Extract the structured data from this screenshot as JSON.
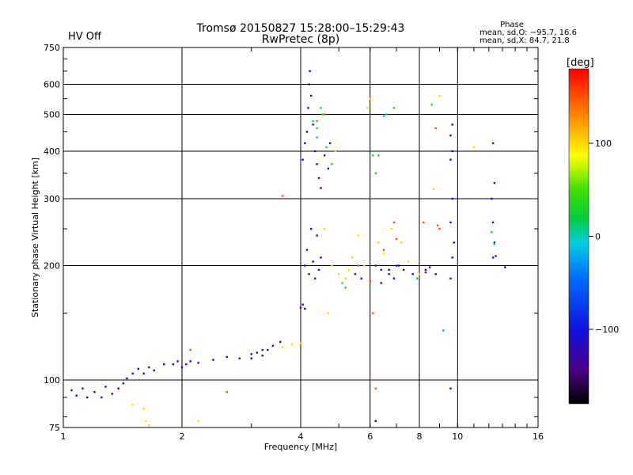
{
  "header": {
    "title_line1": "Tromsø 20150827 15:28:00–15:29:43",
    "title_line2": "RwPretec (8p)",
    "status": "HV Off",
    "status_color": "#d00000"
  },
  "phase_info": {
    "heading": "Phase",
    "line_o": "mean, sd,O: −95.7, 16.6",
    "line_x": "mean, sd,X:  84.7, 21.8"
  },
  "colorbar": {
    "label": "[deg]",
    "ticks": [
      {
        "value": 100,
        "label": "100"
      },
      {
        "value": 0,
        "label": "0"
      },
      {
        "value": -100,
        "label": "−100"
      }
    ],
    "range": [
      -180,
      180
    ]
  },
  "chart_data": {
    "type": "scatter",
    "xlabel": "Frequency [MHz]",
    "ylabel": "Stationary phase Virtual Height [km]",
    "x_scale": "log",
    "y_scale": "log",
    "xlim": [
      1,
      16
    ],
    "ylim": [
      75,
      750
    ],
    "xticks": [
      1,
      2,
      4,
      6,
      8,
      10,
      16
    ],
    "xtick_labels": [
      "1",
      "2",
      "4",
      "6",
      "8",
      "10",
      "16"
    ],
    "yticks": [
      75,
      100,
      200,
      300,
      400,
      500,
      600,
      750
    ],
    "ytick_labels": [
      "75",
      "100",
      "200",
      "300",
      "400",
      "500",
      "600",
      "750"
    ],
    "grid": true,
    "series": [
      {
        "points": [
          [
            1.05,
            94
          ],
          [
            1.08,
            91
          ],
          [
            1.12,
            95
          ],
          [
            1.15,
            90
          ],
          [
            1.2,
            93
          ],
          [
            1.25,
            90
          ],
          [
            1.28,
            96
          ],
          [
            1.33,
            92
          ],
          [
            1.38,
            95
          ],
          [
            1.42,
            98
          ],
          [
            1.45,
            101
          ],
          [
            1.5,
            104
          ],
          [
            1.55,
            107
          ],
          [
            1.6,
            104
          ],
          [
            1.65,
            108
          ],
          [
            1.7,
            106
          ],
          [
            1.8,
            110
          ],
          [
            1.9,
            110
          ],
          [
            1.95,
            112
          ],
          [
            2.0,
            108
          ],
          [
            2.05,
            110
          ],
          [
            2.1,
            112
          ],
          [
            2.2,
            111
          ],
          [
            2.4,
            113
          ],
          [
            2.6,
            115
          ],
          [
            2.8,
            114
          ],
          [
            3.0,
            117
          ],
          [
            3.2,
            120
          ],
          [
            3.4,
            123
          ],
          [
            3.55,
            126
          ],
          [
            4.0,
            155
          ],
          [
            4.05,
            158
          ],
          [
            4.1,
            154
          ],
          [
            4.1,
            200
          ],
          [
            4.15,
            220
          ],
          [
            4.2,
            190
          ],
          [
            4.25,
            250
          ],
          [
            4.3,
            205
          ],
          [
            4.35,
            185
          ],
          [
            4.4,
            240
          ],
          [
            4.45,
            195
          ],
          [
            4.5,
            210
          ],
          [
            4.05,
            380
          ],
          [
            4.1,
            420
          ],
          [
            4.15,
            450
          ],
          [
            4.18,
            520
          ],
          [
            4.2,
            600
          ],
          [
            4.22,
            650
          ],
          [
            4.25,
            560
          ],
          [
            4.3,
            470
          ],
          [
            4.35,
            400
          ],
          [
            4.4,
            370
          ],
          [
            4.45,
            340
          ],
          [
            4.5,
            320
          ],
          [
            4.6,
            390
          ],
          [
            4.7,
            360
          ],
          [
            4.75,
            420
          ],
          [
            5.5,
            190
          ],
          [
            5.7,
            185
          ],
          [
            6.2,
            200
          ],
          [
            6.4,
            195
          ],
          [
            6.7,
            190
          ],
          [
            7.0,
            200
          ],
          [
            7.3,
            195
          ],
          [
            7.7,
            190
          ],
          [
            8.3,
            192
          ],
          [
            8.8,
            190
          ],
          [
            9.6,
            185
          ],
          [
            9.7,
            210
          ],
          [
            9.8,
            230
          ],
          [
            9.6,
            260
          ],
          [
            9.7,
            300
          ],
          [
            9.6,
            380
          ],
          [
            9.7,
            400
          ],
          [
            9.6,
            440
          ],
          [
            9.7,
            470
          ],
          [
            9.6,
            95
          ],
          [
            12.3,
            420
          ],
          [
            12.4,
            330
          ],
          [
            12.3,
            260
          ],
          [
            12.4,
            230
          ],
          [
            12.3,
            210
          ],
          [
            12.2,
            300
          ]
        ],
        "phase_deg": -110
      },
      {
        "points": [
          [
            1.6,
            84
          ],
          [
            1.62,
            78
          ],
          [
            1.65,
            76
          ],
          [
            1.5,
            86
          ],
          [
            2.2,
            78
          ],
          [
            3.6,
            122
          ],
          [
            3.8,
            124
          ],
          [
            4.0,
            125
          ],
          [
            4.6,
            250
          ],
          [
            4.8,
            200
          ],
          [
            5.0,
            190
          ],
          [
            5.2,
            185
          ],
          [
            5.3,
            195
          ],
          [
            5.4,
            210
          ],
          [
            5.6,
            240
          ],
          [
            5.8,
            200
          ],
          [
            5.9,
            520
          ],
          [
            6.0,
            550
          ],
          [
            6.3,
            230
          ],
          [
            6.5,
            215
          ],
          [
            6.8,
            250
          ],
          [
            7.2,
            230
          ],
          [
            7.5,
            205
          ],
          [
            8.0,
            190
          ],
          [
            8.7,
            318
          ],
          [
            9.0,
            560
          ],
          [
            11.0,
            410
          ],
          [
            4.7,
            150
          ],
          [
            4.9,
            400
          ]
        ],
        "phase_deg": 100
      },
      {
        "points": [
          [
            4.3,
            480
          ],
          [
            4.4,
            460
          ],
          [
            4.5,
            520
          ],
          [
            4.55,
            500
          ],
          [
            4.65,
            410
          ],
          [
            6.3,
            390
          ],
          [
            6.6,
            500
          ],
          [
            6.9,
            520
          ],
          [
            8.6,
            530
          ],
          [
            4.8,
            370
          ],
          [
            5.1,
            180
          ],
          [
            5.2,
            175
          ],
          [
            6.1,
            390
          ],
          [
            6.2,
            350
          ],
          [
            7.9,
            185
          ],
          [
            12.2,
            245
          ]
        ],
        "phase_deg": 30
      },
      {
        "points": [
          [
            2.1,
            120
          ],
          [
            2.6,
            93
          ],
          [
            3.6,
            305
          ],
          [
            4.4,
            480
          ],
          [
            4.6,
            500
          ],
          [
            6.2,
            95
          ],
          [
            6.1,
            150
          ],
          [
            6.5,
            220
          ],
          [
            6.9,
            260
          ],
          [
            7.0,
            235
          ],
          [
            8.2,
            260
          ],
          [
            8.9,
            255
          ],
          [
            9.0,
            250
          ],
          [
            8.8,
            460
          ],
          [
            5.6,
            200
          ],
          [
            6.0,
            182
          ]
        ],
        "phase_deg": 150
      },
      {
        "points": [
          [
            3.1,
            118
          ],
          [
            3.2,
            116
          ],
          [
            3.3,
            120
          ],
          [
            3.0,
            114
          ],
          [
            6.7,
            195
          ],
          [
            6.9,
            185
          ],
          [
            7.1,
            200
          ],
          [
            8.3,
            195
          ],
          [
            8.5,
            198
          ],
          [
            6.4,
            180
          ],
          [
            12.5,
            212
          ],
          [
            13.2,
            198
          ],
          [
            6.2,
            78
          ]
        ],
        "phase_deg": -150
      },
      {
        "points": [
          [
            9.2,
            135
          ],
          [
            12.4,
            228
          ],
          [
            6.5,
            495
          ],
          [
            4.4,
            435
          ]
        ],
        "phase_deg": -20
      }
    ]
  }
}
